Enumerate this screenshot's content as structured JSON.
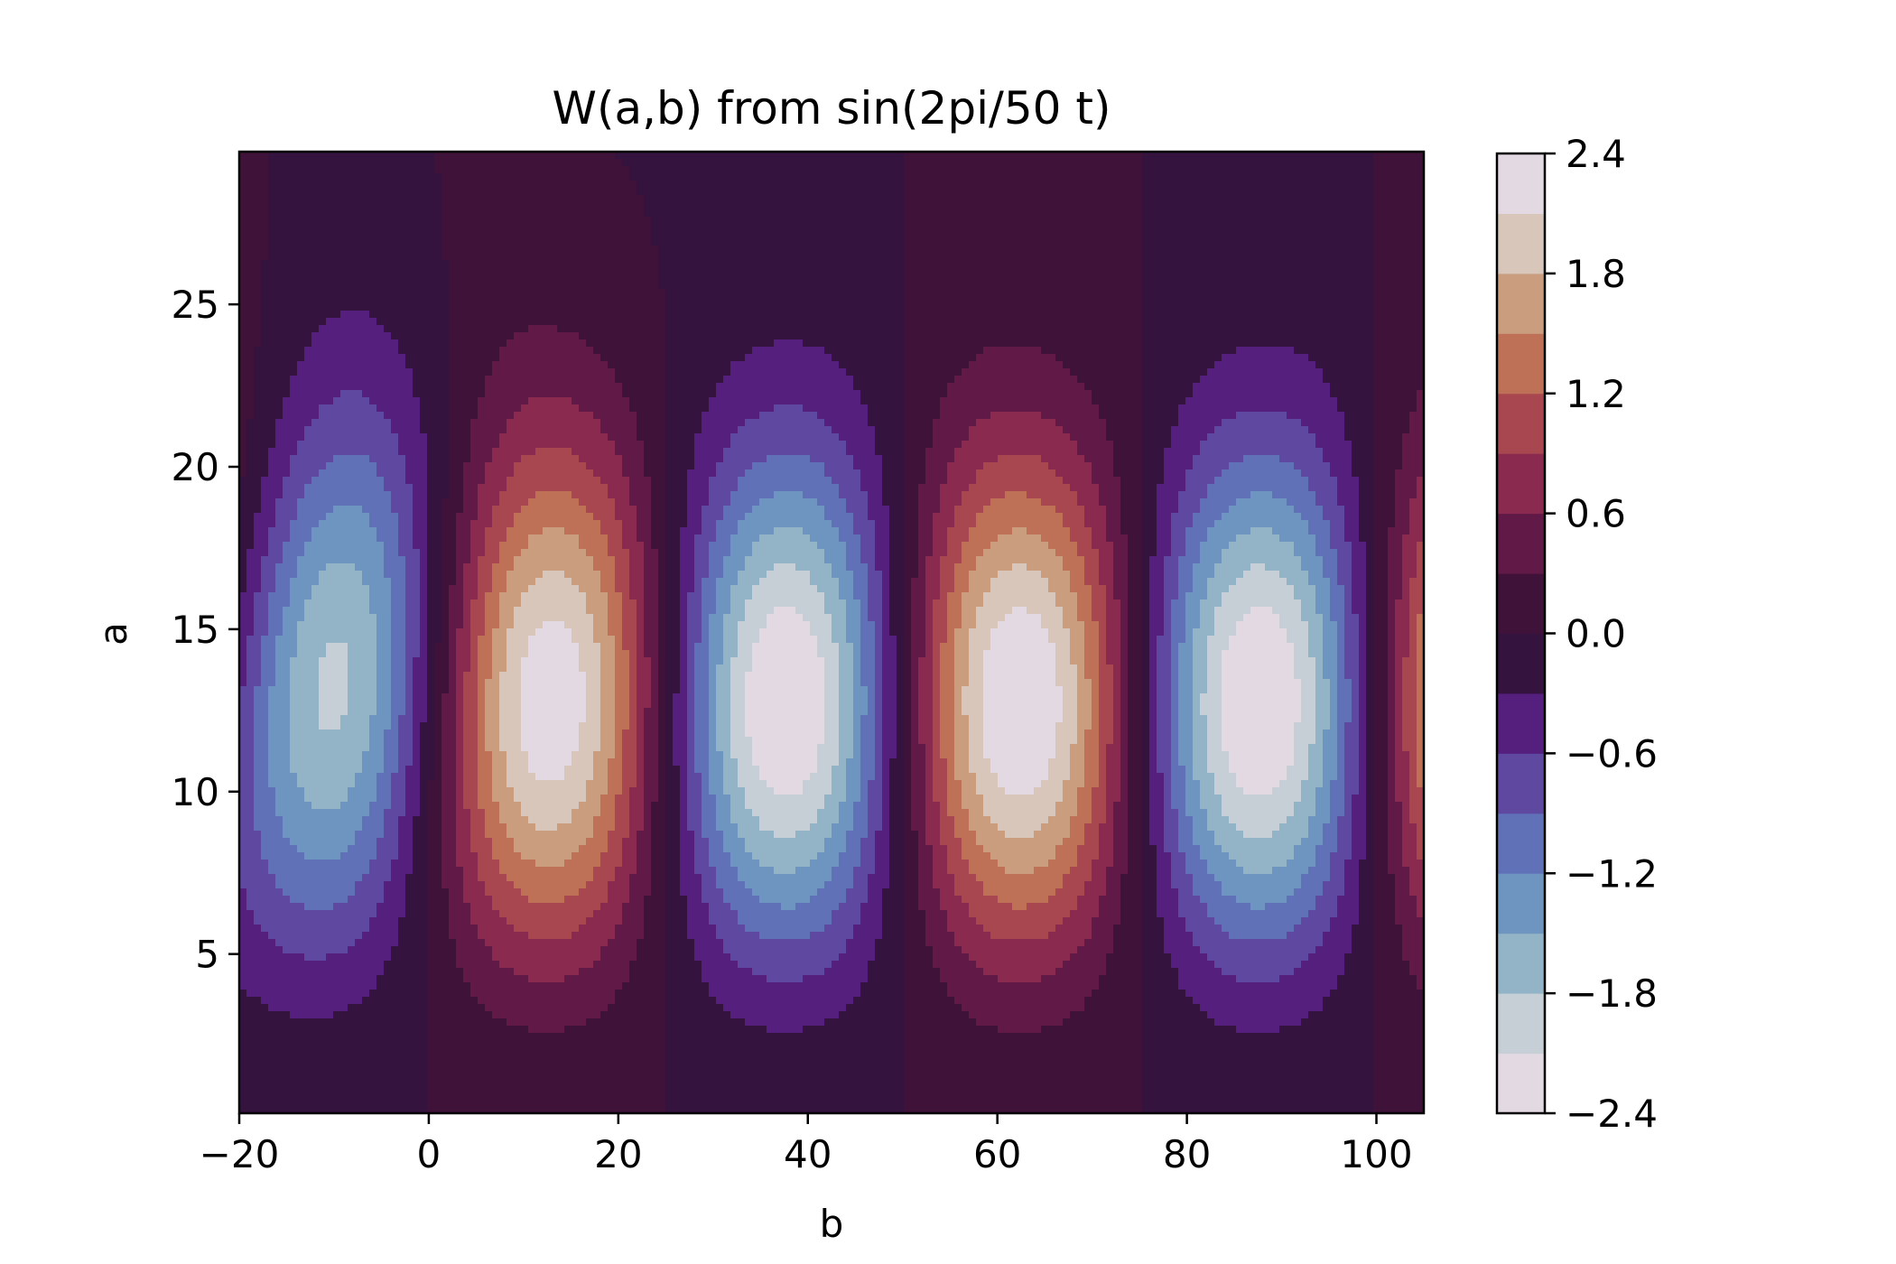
{
  "chart_data": {
    "type": "heatmap",
    "subtype": "filled-contour",
    "title": "W(a,b) from sin(2pi/50 t)",
    "xlabel": "b",
    "ylabel": "a",
    "xlim": [
      -20,
      105
    ],
    "ylim": [
      0.1,
      29.7
    ],
    "xticks": [
      -20,
      0,
      20,
      40,
      60,
      80,
      100
    ],
    "xtick_labels": [
      "−20",
      "0",
      "20",
      "40",
      "60",
      "80",
      "100"
    ],
    "yticks": [
      5,
      10,
      15,
      20,
      25
    ],
    "ytick_labels": [
      "5",
      "10",
      "15",
      "20",
      "25"
    ],
    "signal_period": 50,
    "extrema": [
      {
        "b": 12,
        "a": 9,
        "value": 2.0
      },
      {
        "b": 37,
        "a": 9,
        "value": -2.4
      },
      {
        "b": 62,
        "a": 9,
        "value": 2.4
      },
      {
        "b": 87,
        "a": 9,
        "value": -2.0
      }
    ],
    "colormap": "twilight_shifted",
    "colorbar": {
      "min": -2.4,
      "max": 2.4,
      "levels": [
        -2.4,
        -2.1,
        -1.8,
        -1.5,
        -1.2,
        -0.9,
        -0.6,
        -0.3,
        0.0,
        0.3,
        0.6,
        0.9,
        1.2,
        1.5,
        1.8,
        2.1,
        2.4
      ],
      "ticks": [
        -2.4,
        -1.8,
        -1.2,
        -0.6,
        0.0,
        0.6,
        1.2,
        1.8,
        2.4
      ],
      "tick_labels": [
        "−2.4",
        "−1.8",
        "−1.2",
        "−0.6",
        "0.0",
        "0.6",
        "1.2",
        "1.8",
        "2.4"
      ],
      "colors": [
        "#e2d9e2",
        "#c6cfd6",
        "#93b4c6",
        "#6e94c0",
        "#6071b8",
        "#5e48a0",
        "#551f7d",
        "#34133f",
        "#3e1239",
        "#611a47",
        "#892a4e",
        "#a8474f",
        "#bf7158",
        "#ca9d7f",
        "#d8c6bb",
        "#e2d9e2"
      ]
    }
  }
}
